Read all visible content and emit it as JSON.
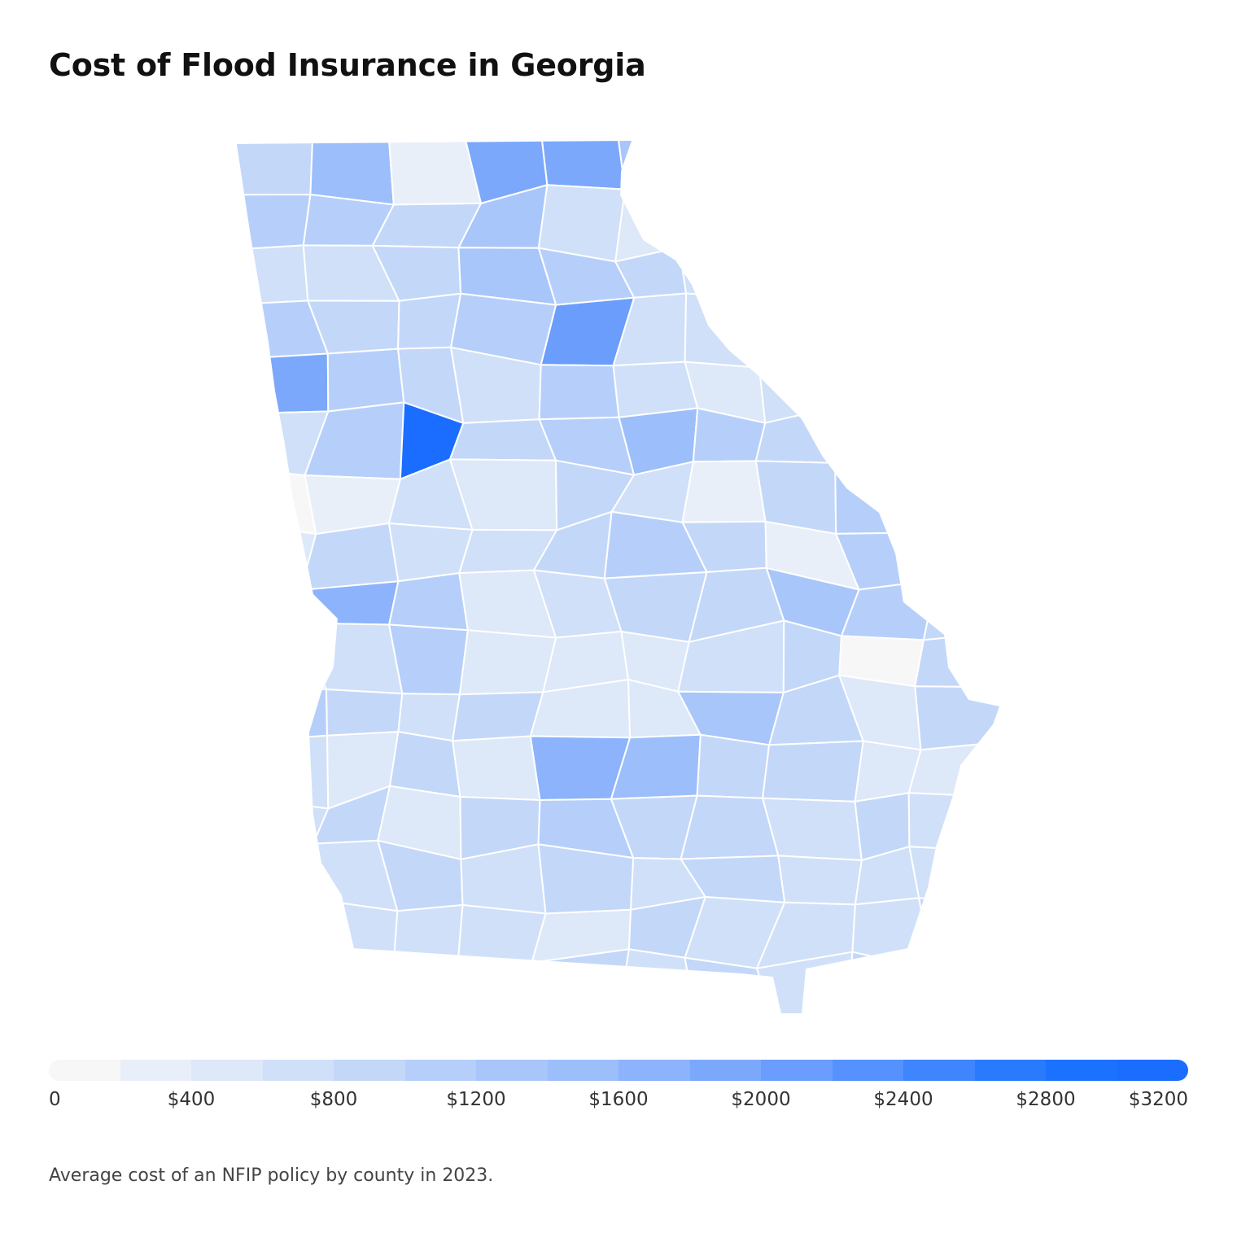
{
  "header": {
    "title": "Cost of Flood Insurance in Georgia"
  },
  "footer": {
    "caption": "Average cost of an NFIP policy by county in 2023."
  },
  "chart_data": {
    "type": "choropleth",
    "region": "Georgia counties",
    "value_unit": "USD",
    "scale": {
      "min": 0,
      "max": 3200,
      "colors": [
        "#f7f7f7",
        "#e9eff9",
        "#dde8f9",
        "#d0e0f9",
        "#c3d7f9",
        "#b6cffa",
        "#a9c6fa",
        "#9cbefa",
        "#8cb3fb",
        "#7ba8fb",
        "#6a9dfc",
        "#5592fd",
        "#3f86fe",
        "#2a7afe",
        "#1b72ff",
        "#1a6dff"
      ],
      "tick_labels": [
        "0",
        "$400",
        "$800",
        "$1200",
        "$1600",
        "$2000",
        "$2400",
        "$2800",
        "$3200"
      ]
    },
    "counties": [
      {
        "v": 800
      },
      {
        "v": 1400
      },
      {
        "v": 300
      },
      {
        "v": 1900
      },
      {
        "v": 1800
      },
      {
        "v": 1200
      },
      {
        "v": 700
      },
      {
        "v": 1000
      },
      {
        "v": 600
      },
      {
        "v": 1200
      },
      {
        "v": 1100
      },
      {
        "v": 1000
      },
      {
        "v": 800
      },
      {
        "v": 1300
      },
      {
        "v": 700
      },
      {
        "v": 500
      },
      {
        "v": 1200
      },
      {
        "v": 1300
      },
      {
        "v": 1000
      },
      {
        "v": 800
      },
      {
        "v": 700
      },
      {
        "v": 600
      },
      {
        "v": 800
      },
      {
        "v": 1300
      },
      {
        "v": 1000
      },
      {
        "v": 800
      },
      {
        "v": 700
      },
      {
        "v": 1000
      },
      {
        "v": 800
      },
      {
        "v": 700
      },
      {
        "v": 1100
      },
      {
        "v": 800
      },
      {
        "v": 800
      },
      {
        "v": 1000
      },
      {
        "v": 2000
      },
      {
        "v": 700
      },
      {
        "v": 600
      },
      {
        "v": 800
      },
      {
        "v": 1400
      },
      {
        "v": 800
      },
      {
        "v": 1800
      },
      {
        "v": 1100
      },
      {
        "v": 900
      },
      {
        "v": 700
      },
      {
        "v": 1000
      },
      {
        "v": 600
      },
      {
        "v": 400
      },
      {
        "v": 700
      },
      {
        "v": 800
      },
      {
        "v": 800
      },
      {
        "v": 600
      },
      {
        "v": 1000
      },
      {
        "v": 3100
      },
      {
        "v": 800
      },
      {
        "v": 1000
      },
      {
        "v": 1500
      },
      {
        "v": 1000
      },
      {
        "v": 800
      },
      {
        "v": 1000
      },
      {
        "v": 700
      },
      {
        "v": 0
      },
      {
        "v": 300
      },
      {
        "v": 700
      },
      {
        "v": 400
      },
      {
        "v": 900
      },
      {
        "v": 700
      },
      {
        "v": 300
      },
      {
        "v": 900
      },
      {
        "v": 1000
      },
      {
        "v": 800
      },
      {
        "v": 500
      },
      {
        "v": 800
      },
      {
        "v": 600
      },
      {
        "v": 700
      },
      {
        "v": 900
      },
      {
        "v": 1100
      },
      {
        "v": 800
      },
      {
        "v": 200
      },
      {
        "v": 1000
      },
      {
        "v": 700
      },
      {
        "v": 800
      },
      {
        "v": 1600
      },
      {
        "v": 1100
      },
      {
        "v": 500
      },
      {
        "v": 700
      },
      {
        "v": 800
      },
      {
        "v": 800
      },
      {
        "v": 1300
      },
      {
        "v": 1000
      },
      {
        "v": 800
      },
      {
        "v": 700
      },
      {
        "v": 700
      },
      {
        "v": 1100
      },
      {
        "v": 500
      },
      {
        "v": 400
      },
      {
        "v": 500
      },
      {
        "v": 700
      },
      {
        "v": 800
      },
      {
        "v": 0
      },
      {
        "v": 900
      },
      {
        "v": 1000
      },
      {
        "v": 900
      },
      {
        "v": 700
      },
      {
        "v": 800
      },
      {
        "v": 500
      },
      {
        "v": 400
      },
      {
        "v": 1300
      },
      {
        "v": 900
      },
      {
        "v": 500
      },
      {
        "v": 800
      },
      {
        "v": 600
      },
      {
        "v": 400
      },
      {
        "v": 800
      },
      {
        "v": 500
      },
      {
        "v": 1600
      },
      {
        "v": 1500
      },
      {
        "v": 900
      },
      {
        "v": 900
      },
      {
        "v": 500
      },
      {
        "v": 400
      },
      {
        "v": 600
      },
      {
        "v": 800
      },
      {
        "v": 400
      },
      {
        "v": 800
      },
      {
        "v": 1000
      },
      {
        "v": 900
      },
      {
        "v": 900
      },
      {
        "v": 700
      },
      {
        "v": 800
      },
      {
        "v": 700
      },
      {
        "v": 500
      },
      {
        "v": 600
      },
      {
        "v": 800
      },
      {
        "v": 700
      },
      {
        "v": 900
      },
      {
        "v": 600
      },
      {
        "v": 800
      },
      {
        "v": 700
      },
      {
        "v": 700
      },
      {
        "v": 600
      },
      {
        "v": 600
      },
      {
        "v": 700
      },
      {
        "v": 600
      },
      {
        "v": 700
      },
      {
        "v": 500
      },
      {
        "v": 800
      },
      {
        "v": 700
      },
      {
        "v": 600
      },
      {
        "v": 700
      },
      {
        "v": 800
      },
      {
        "v": 700
      },
      {
        "v": 600
      },
      {
        "v": 700
      },
      {
        "v": 700
      },
      {
        "v": 800
      },
      {
        "v": 600
      },
      {
        "v": 800
      },
      {
        "v": 600
      }
    ]
  }
}
